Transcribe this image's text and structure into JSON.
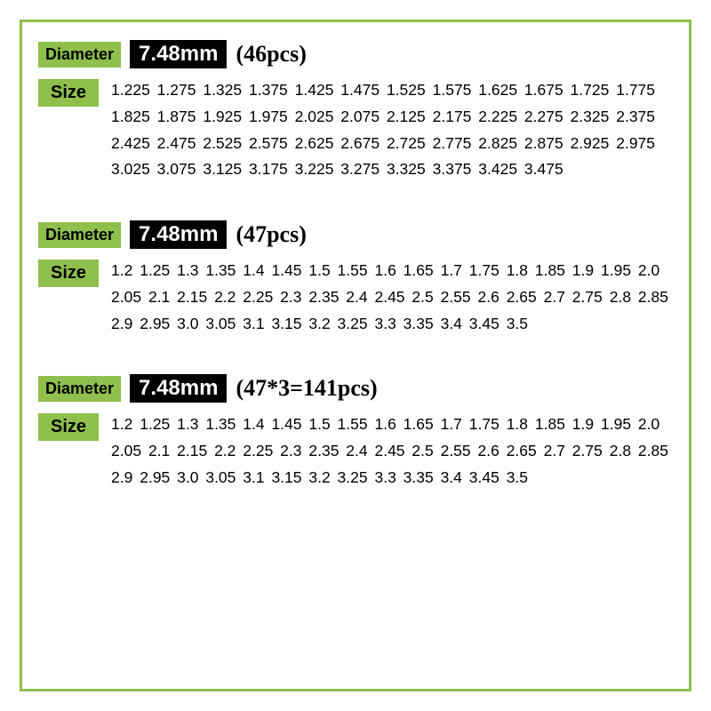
{
  "colors": {
    "border": "#8fbf4d",
    "label_bg": "#8fbf4d",
    "label_text": "#000000",
    "badge_bg": "#000000",
    "badge_text": "#ffffff",
    "count_text": "#000000",
    "body_text": "#000000"
  },
  "labels": {
    "diameter": "Diameter",
    "size": "Size"
  },
  "blocks": [
    {
      "diameter": "7.48mm",
      "count": "(46pcs)",
      "sizes": "1.225 1.275 1.325 1.375 1.425 1.475 1.525 1.575 1.625 1.675 1.725 1.775 1.825 1.875 1.925 1.975 2.025 2.075 2.125 2.175 2.225 2.275 2.325 2.375 2.425 2.475 2.525 2.575 2.625 2.675 2.725 2.775 2.825 2.875 2.925 2.975 3.025 3.075 3.125 3.175 3.225 3.275 3.325 3.375 3.425 3.475"
    },
    {
      "diameter": "7.48mm",
      "count": "(47pcs)",
      "sizes": "1.2 1.25 1.3 1.35 1.4 1.45 1.5 1.55 1.6 1.65 1.7 1.75 1.8 1.85 1.9 1.95 2.0 2.05 2.1 2.15 2.2 2.25 2.3 2.35 2.4 2.45 2.5 2.55 2.6 2.65 2.7 2.75 2.8 2.85 2.9 2.95 3.0 3.05 3.1 3.15 3.2 3.25 3.3 3.35 3.4 3.45 3.5"
    },
    {
      "diameter": "7.48mm",
      "count": "(47*3=141pcs)",
      "sizes": "1.2 1.25 1.3 1.35 1.4 1.45 1.5 1.55 1.6 1.65 1.7 1.75 1.8 1.85 1.9 1.95 2.0 2.05 2.1 2.15 2.2 2.25 2.3 2.35 2.4 2.45 2.5 2.55 2.6 2.65 2.7 2.75 2.8 2.85 2.9 2.95 3.0 3.05 3.1 3.15 3.2 3.25 3.3 3.35 3.4 3.45 3.5"
    }
  ]
}
